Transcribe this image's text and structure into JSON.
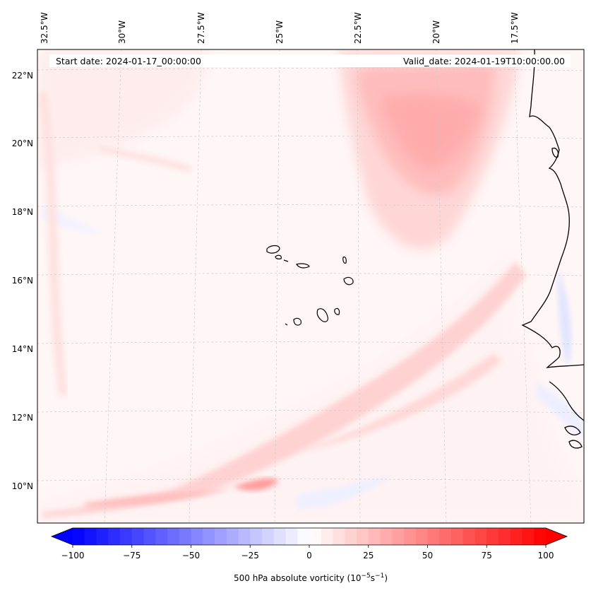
{
  "header": {
    "start_date": "Start date: 2024-01-17_00:00:00",
    "valid_date": "Valid_date: 2024-01-19T10:00:00.00"
  },
  "axes": {
    "lon_ticks": [
      "32.5°W",
      "30°W",
      "27.5°W",
      "25°W",
      "22.5°W",
      "20°W",
      "17.5°W"
    ],
    "lat_ticks": [
      "22°N",
      "20°N",
      "18°N",
      "16°N",
      "14°N",
      "12°N",
      "10°N"
    ]
  },
  "colorbar": {
    "label": "500 hPa absolute vorticity (10",
    "label_exp1": "−5",
    "label_mid": "s",
    "label_exp2": "−1",
    "label_end": ")",
    "ticks": [
      "−100",
      "−75",
      "−50",
      "−25",
      "0",
      "25",
      "50",
      "75",
      "100"
    ],
    "min": -100,
    "max": 100,
    "step": 5,
    "neg_color": "#0000ff",
    "pos_color": "#ff0000"
  },
  "colors": {
    "land_outline": "#000000",
    "grid": "#c8c8c8",
    "background": "#fff6f6"
  }
}
